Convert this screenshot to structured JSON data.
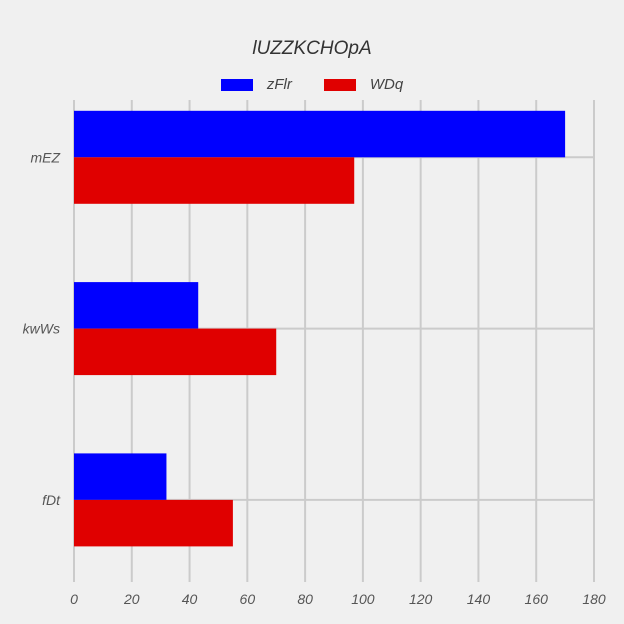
{
  "chart_data": {
    "type": "bar",
    "orientation": "horizontal",
    "title": "lUZZKCHOpA",
    "xlabel": "",
    "ylabel": "",
    "categories": [
      "mEZ",
      "kwWs",
      "fDt"
    ],
    "series": [
      {
        "name": "zFlr",
        "color": "#0000ff",
        "values": [
          170,
          43,
          32
        ]
      },
      {
        "name": "WDq",
        "color": "#e00000",
        "values": [
          97,
          70,
          55
        ]
      }
    ],
    "xlim": [
      0,
      180
    ],
    "xticks": [
      0,
      20,
      40,
      60,
      80,
      100,
      120,
      140,
      160,
      180
    ],
    "grid": true,
    "legend_position": "top-center"
  }
}
